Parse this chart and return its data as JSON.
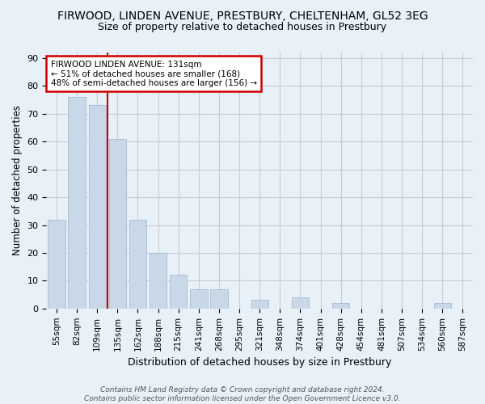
{
  "title": "FIRWOOD, LINDEN AVENUE, PRESTBURY, CHELTENHAM, GL52 3EG",
  "subtitle": "Size of property relative to detached houses in Prestbury",
  "xlabel": "Distribution of detached houses by size in Prestbury",
  "ylabel": "Number of detached properties",
  "categories": [
    "55sqm",
    "82sqm",
    "109sqm",
    "135sqm",
    "162sqm",
    "188sqm",
    "215sqm",
    "241sqm",
    "268sqm",
    "295sqm",
    "321sqm",
    "348sqm",
    "374sqm",
    "401sqm",
    "428sqm",
    "454sqm",
    "481sqm",
    "507sqm",
    "534sqm",
    "560sqm",
    "587sqm"
  ],
  "values": [
    32,
    76,
    73,
    61,
    32,
    20,
    12,
    7,
    7,
    0,
    3,
    0,
    4,
    0,
    2,
    0,
    0,
    0,
    0,
    2,
    0
  ],
  "bar_color": "#c8d8e8",
  "bar_edge_color": "#a8bccf",
  "vline_x_index": 2.5,
  "vline_color": "#cc0000",
  "annotation_text": "FIRWOOD LINDEN AVENUE: 131sqm\n← 51% of detached houses are smaller (168)\n48% of semi-detached houses are larger (156) →",
  "annotation_box_color": "#cc0000",
  "annotation_bg_color": "#ffffff",
  "ylim": [
    0,
    92
  ],
  "yticks": [
    0,
    10,
    20,
    30,
    40,
    50,
    60,
    70,
    80,
    90
  ],
  "grid_color": "#cccccc",
  "background_color": "#e8f0f8",
  "title_fontsize": 10,
  "subtitle_fontsize": 9,
  "footnote": "Contains HM Land Registry data © Crown copyright and database right 2024.\nContains public sector information licensed under the Open Government Licence v3.0."
}
